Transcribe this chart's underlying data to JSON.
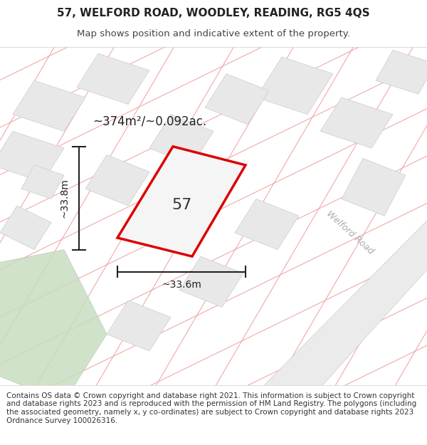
{
  "title_line1": "57, WELFORD ROAD, WOODLEY, READING, RG5 4QS",
  "title_line2": "Map shows position and indicative extent of the property.",
  "footer_text": "Contains OS data © Crown copyright and database right 2021. This information is subject to Crown copyright and database rights 2023 and is reproduced with the permission of HM Land Registry. The polygons (including the associated geometry, namely x, y co-ordinates) are subject to Crown copyright and database rights 2023 Ordnance Survey 100026316.",
  "area_label": "~374m²/~0.092ac.",
  "property_number": "57",
  "dim_height": "~33.8m",
  "dim_width": "~33.6m",
  "road_label": "Welford Road",
  "bg_map_color": "#f5f5f5",
  "plot_fill_color": "#f0f0f0",
  "road_fill_color": "#e8e8e8",
  "red_boundary_color": "#dd0000",
  "grid_line_color": "#f0a0a0",
  "green_area_color": "#c8ddc8",
  "title_fontsize": 11,
  "subtitle_fontsize": 9.5,
  "footer_fontsize": 7.5
}
